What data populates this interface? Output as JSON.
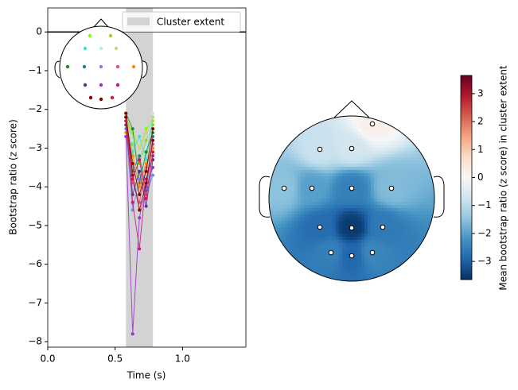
{
  "chart_data": [
    {
      "type": "line",
      "xlabel": "Time (s)",
      "ylabel": "Bootstrap ratio (z score)",
      "xlim": [
        0,
        1.47
      ],
      "ylim": [
        -8.14,
        0.62
      ],
      "xticks": [
        {
          "value": 0,
          "label": "0.0"
        },
        {
          "value": 0.5,
          "label": "0.5"
        },
        {
          "value": 1.0,
          "label": "1.0"
        }
      ],
      "yticks": [
        0,
        {
          "value": -1,
          "label": "−1"
        },
        {
          "value": -2,
          "label": "−2"
        },
        {
          "value": -3,
          "label": "−3"
        },
        {
          "value": -4,
          "label": "−4"
        },
        {
          "value": -5,
          "label": "−5"
        },
        {
          "value": -6,
          "label": "−6"
        },
        {
          "value": -7,
          "label": "−7"
        },
        {
          "value": -8,
          "label": "−8"
        }
      ],
      "hline": 0,
      "span": [
        0.58,
        0.78
      ],
      "span_label": "Cluster extent",
      "span_color": "#d3d3d3",
      "legend": "upper right",
      "x": [
        0.58,
        0.63,
        0.68,
        0.73,
        0.78
      ],
      "series": [
        {
          "color": "#7fff00",
          "values": [
            -2.2,
            -2.6,
            -3.0,
            -2.5,
            -2.3
          ]
        },
        {
          "color": "#9acd32",
          "values": [
            -2.1,
            -2.9,
            -3.4,
            -2.8,
            -2.4
          ]
        },
        {
          "color": "#40e0d0",
          "values": [
            -2.3,
            -3.1,
            -2.7,
            -3.3,
            -2.2
          ]
        },
        {
          "color": "#afeeee",
          "values": [
            -2.4,
            -2.8,
            -3.6,
            -3.0,
            -2.1
          ]
        },
        {
          "color": "#d0d080",
          "values": [
            -2.2,
            -3.3,
            -3.0,
            -2.6,
            -2.2
          ]
        },
        {
          "color": "#228b22",
          "values": [
            -2.1,
            -2.5,
            -3.9,
            -3.1,
            -2.6
          ]
        },
        {
          "color": "#20808a",
          "values": [
            -2.3,
            -3.6,
            -3.2,
            -4.1,
            -2.7
          ]
        },
        {
          "color": "#8080f0",
          "values": [
            -2.5,
            -4.6,
            -3.8,
            -4.2,
            -3.7
          ]
        },
        {
          "color": "#e0508a",
          "values": [
            -2.2,
            -3.9,
            -4.4,
            -3.5,
            -2.9
          ]
        },
        {
          "color": "#ff8c00",
          "values": [
            -2.6,
            -3.2,
            -4.0,
            -3.4,
            -3.0
          ]
        },
        {
          "color": "#483d8b",
          "values": [
            -2.4,
            -4.2,
            -3.6,
            -4.5,
            -3.3
          ]
        },
        {
          "color": "#9932cc",
          "values": [
            -2.7,
            -7.8,
            -4.8,
            -4.0,
            -3.5
          ]
        },
        {
          "color": "#c71585",
          "values": [
            -2.2,
            -4.4,
            -5.6,
            -3.8,
            -3.2
          ]
        },
        {
          "color": "#8b0000",
          "values": [
            -2.1,
            -3.7,
            -4.6,
            -3.9,
            -2.8
          ]
        },
        {
          "color": "#800000",
          "values": [
            -2.2,
            -3.4,
            -4.2,
            -3.6,
            -2.5
          ]
        },
        {
          "color": "#dc143c",
          "values": [
            -2.3,
            -3.8,
            -3.3,
            -4.3,
            -3.1
          ]
        }
      ]
    },
    {
      "type": "topomap",
      "colorbar_label": "Mean bootstrap ratio (z score) in cluster extent",
      "colormap": "RdBu_r",
      "clim": [
        -3.65,
        3.65
      ],
      "cticks": [
        {
          "value": -3,
          "label": "−3"
        },
        {
          "value": -2,
          "label": "−2"
        },
        {
          "value": -1,
          "label": "−1"
        },
        0,
        1,
        2,
        3
      ],
      "values": [
        0.2,
        -0.8,
        -0.7,
        -1.5,
        -2.0,
        -2.5,
        -1.6,
        -2.8,
        -3.5,
        -2.6,
        -2.5,
        -2.9,
        -2.4
      ]
    }
  ]
}
